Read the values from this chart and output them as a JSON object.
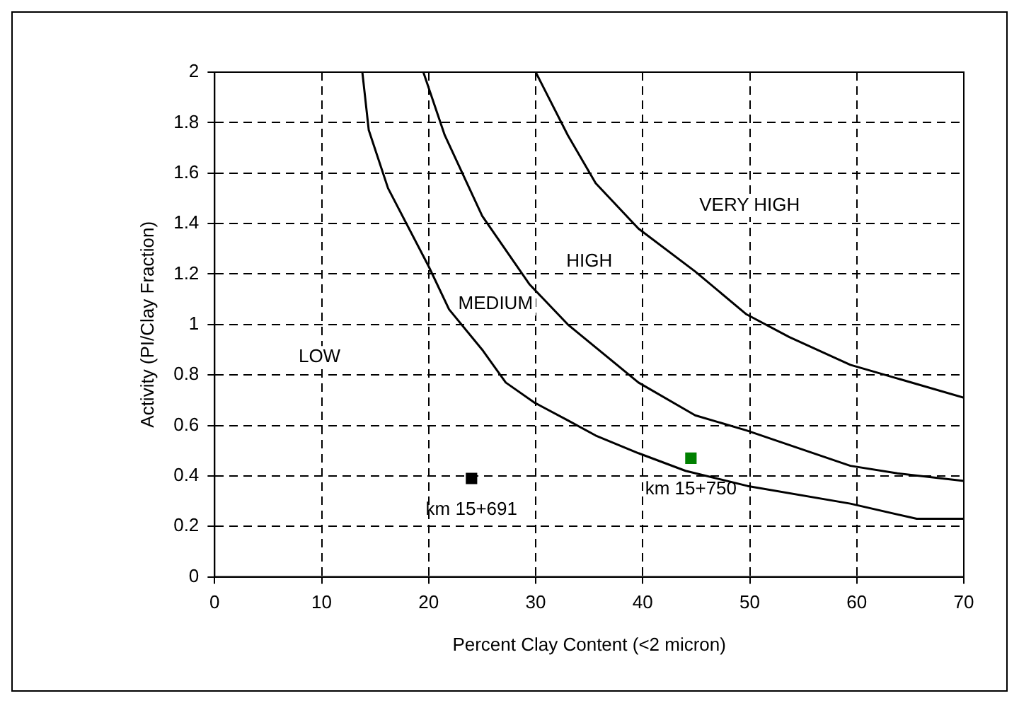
{
  "chart_data": {
    "type": "line",
    "xlabel": "Percent Clay Content (<2 micron)",
    "ylabel": "Activity (PI/Clay Fraction)",
    "xlim": [
      0,
      70
    ],
    "ylim": [
      0,
      2
    ],
    "xticks": [
      0,
      10,
      20,
      30,
      40,
      50,
      60,
      70
    ],
    "yticks": [
      0,
      0.2,
      0.4,
      0.6,
      0.8,
      1,
      1.2,
      1.4,
      1.6,
      1.8,
      2
    ],
    "grid": true,
    "legend": false,
    "line_style": "solid",
    "marker": "none",
    "series": [
      {
        "type": "line",
        "color": "#000000",
        "x": [
          13.8,
          14.4,
          16.2,
          20,
          21.9,
          25,
          27.2,
          29.9,
          33,
          35.6,
          39.6,
          44,
          49.8,
          59.4,
          65.6,
          70
        ],
        "values": [
          2,
          1.77,
          1.54,
          1.23,
          1.06,
          0.9,
          0.77,
          0.69,
          0.62,
          0.56,
          0.49,
          0.42,
          0.36,
          0.29,
          0.23,
          0.23
        ]
      },
      {
        "type": "line",
        "color": "#000000",
        "x": [
          19.5,
          21.5,
          25,
          29.4,
          33,
          39.6,
          44.9,
          49.7,
          59.4,
          63.8,
          70
        ],
        "values": [
          2,
          1.75,
          1.43,
          1.16,
          1,
          0.77,
          0.64,
          0.58,
          0.44,
          0.41,
          0.38
        ]
      },
      {
        "type": "line",
        "color": "#000000",
        "x": [
          30,
          33,
          35.6,
          39.6,
          44.9,
          49.7,
          53.7,
          59.4,
          70
        ],
        "values": [
          2,
          1.75,
          1.56,
          1.38,
          1.21,
          1.04,
          0.95,
          0.84,
          0.71
        ]
      },
      {
        "type": "scatter",
        "marker": "square",
        "name": "km 15+691",
        "color": "#000000",
        "x": [
          24
        ],
        "values": [
          0.39
        ]
      },
      {
        "type": "scatter",
        "marker": "square",
        "name": "km 15+750",
        "color": "#008000",
        "x": [
          44.5
        ],
        "values": [
          0.47
        ]
      }
    ],
    "annotations": [
      "LOW",
      "MEDIUM",
      "HIGH",
      "VERY HIGH"
    ]
  }
}
